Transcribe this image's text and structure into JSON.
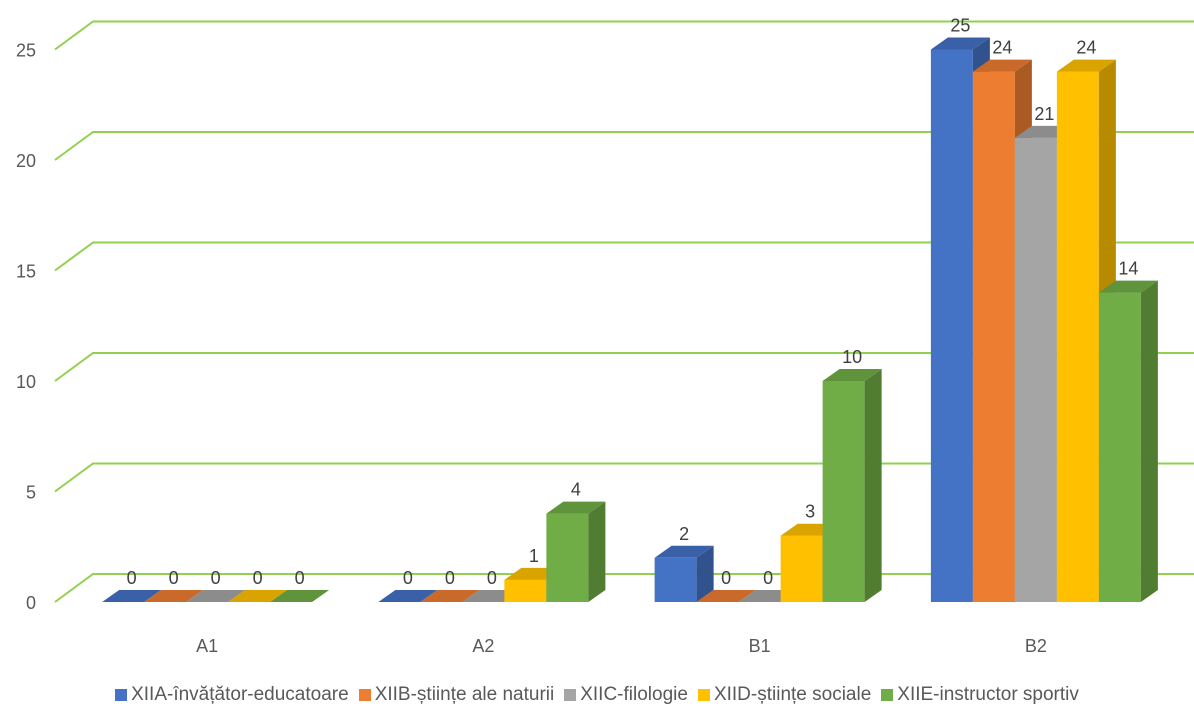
{
  "chart_data": {
    "type": "bar",
    "categories": [
      "A1",
      "A2",
      "B1",
      "B2"
    ],
    "series": [
      {
        "name": "XIIA-învățător-educatoare",
        "color": "#4472C4",
        "values": [
          0,
          0,
          2,
          25
        ]
      },
      {
        "name": "XIIB-științe ale naturii",
        "color": "#ED7D31",
        "values": [
          0,
          0,
          0,
          24
        ]
      },
      {
        "name": "XIIC-filologie",
        "color": "#A5A5A5",
        "values": [
          0,
          0,
          0,
          21
        ]
      },
      {
        "name": "XIID-științe sociale",
        "color": "#FFC000",
        "values": [
          0,
          1,
          3,
          24
        ]
      },
      {
        "name": "XIIE-instructor sportiv",
        "color": "#70AD47",
        "values": [
          0,
          4,
          10,
          14
        ]
      }
    ],
    "ylim": [
      0,
      25
    ],
    "yticks": [
      0,
      5,
      10,
      15,
      20,
      25
    ],
    "grid": true,
    "gridline_color": "#92D050",
    "legend_position": "bottom",
    "three_d": true
  }
}
